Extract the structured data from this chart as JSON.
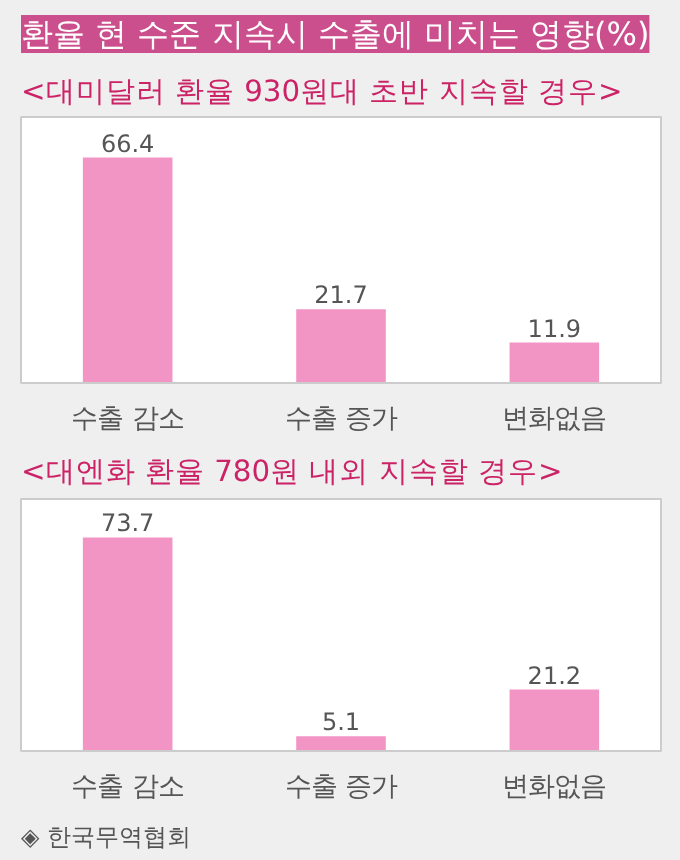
{
  "chart_data": [
    {
      "type": "bar",
      "title": "환율 현 수준 지속시 수출에 미치는 영향(%)",
      "subtitle": "<대미달러 환율 930원대 초반 지속할 경우>",
      "categories": [
        "수출 감소",
        "수출 증가",
        "변화없음"
      ],
      "values": [
        66.4,
        21.7,
        11.9
      ],
      "colors": [
        "#f395c4",
        "#f395c4",
        "#f395c4"
      ],
      "data_labels": true,
      "grid": false
    },
    {
      "type": "bar",
      "title": "<대엔화 환율 780원 내외 지속할 경우>",
      "categories": [
        "수출 감소",
        "수출 증가",
        "변화없음"
      ],
      "values": [
        73.7,
        5.1,
        21.2
      ],
      "colors": [
        "#f395c4",
        "#f395c4",
        "#f395c4"
      ],
      "data_labels": true,
      "grid": false,
      "annotations": [
        "◈ 한국무역협회"
      ]
    }
  ]
}
